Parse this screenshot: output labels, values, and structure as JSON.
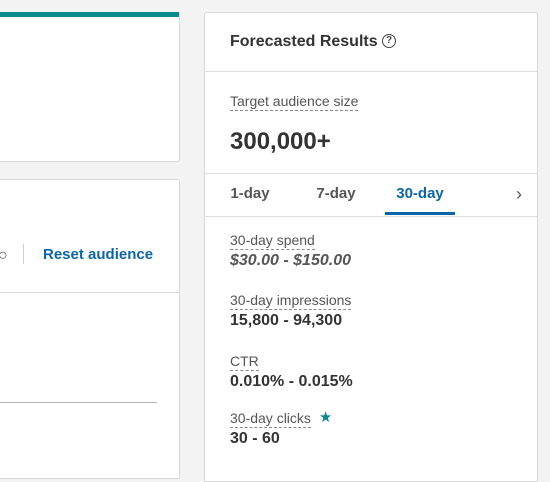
{
  "left_panel": {
    "reset_audience_label": "Reset audience"
  },
  "forecast": {
    "title": "Forecasted Results",
    "help_icon": "question-circle-icon",
    "audience_size_label": "Target audience size",
    "audience_size_value": "300,000+",
    "tabs": [
      {
        "label": "1-day",
        "selected": false
      },
      {
        "label": "7-day",
        "selected": false
      },
      {
        "label": "30-day",
        "selected": true
      }
    ],
    "next_icon": "chevron-right-icon",
    "metrics": {
      "spend": {
        "label": "30-day spend",
        "value": "$30.00 - $150.00"
      },
      "impressions": {
        "label": "30-day impressions",
        "value": "15,800 - 94,300"
      },
      "ctr": {
        "label": "CTR",
        "value": "0.010% - 0.015%"
      },
      "clicks": {
        "label": "30-day clicks",
        "value": "30 - 60",
        "icon": "star-icon"
      }
    }
  },
  "colors": {
    "accent_teal": "#0a8a8c",
    "link_blue": "#0a66a8"
  }
}
